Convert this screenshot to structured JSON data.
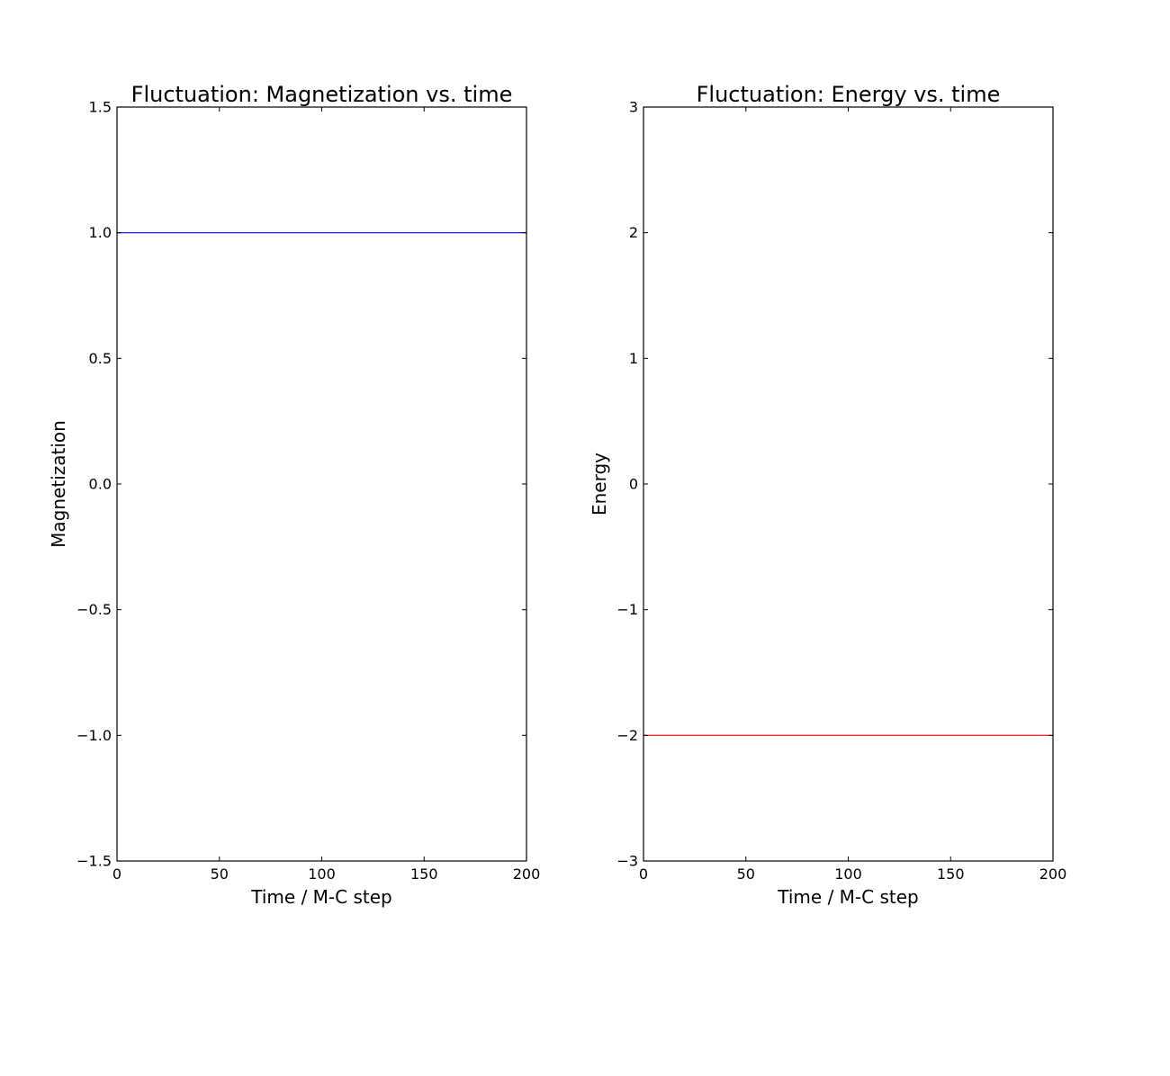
{
  "chart_data": [
    {
      "type": "line",
      "title": "Fluctuation: Magnetization vs. time",
      "xlabel": "Time / M-C step",
      "ylabel": "Magnetization",
      "xlim": [
        0,
        200
      ],
      "ylim": [
        -1.5,
        1.5
      ],
      "xticks": [
        "0",
        "50",
        "100",
        "150",
        "200"
      ],
      "xtick_values": [
        0,
        50,
        100,
        150,
        200
      ],
      "yticks": [
        "−1.5",
        "−1.0",
        "−0.5",
        "0.0",
        "0.5",
        "1.0",
        "1.5"
      ],
      "ytick_values": [
        -1.5,
        -1.0,
        -0.5,
        0.0,
        0.5,
        1.0,
        1.5
      ],
      "series": [
        {
          "x": [
            0,
            200
          ],
          "y": [
            1.0,
            1.0
          ],
          "color": "#0000ff"
        }
      ],
      "grid": false,
      "legend": "none"
    },
    {
      "type": "line",
      "title": "Fluctuation: Energy vs. time",
      "xlabel": "Time / M-C step",
      "ylabel": "Energy",
      "xlim": [
        0,
        200
      ],
      "ylim": [
        -3,
        3
      ],
      "xticks": [
        "0",
        "50",
        "100",
        "150",
        "200"
      ],
      "xtick_values": [
        0,
        50,
        100,
        150,
        200
      ],
      "yticks": [
        "−3",
        "−2",
        "−1",
        "0",
        "1",
        "2",
        "3"
      ],
      "ytick_values": [
        -3,
        -2,
        -1,
        0,
        1,
        2,
        3
      ],
      "series": [
        {
          "x": [
            0,
            200
          ],
          "y": [
            -2,
            -2
          ],
          "color": "#ff0000"
        }
      ],
      "grid": false,
      "legend": "none"
    }
  ]
}
